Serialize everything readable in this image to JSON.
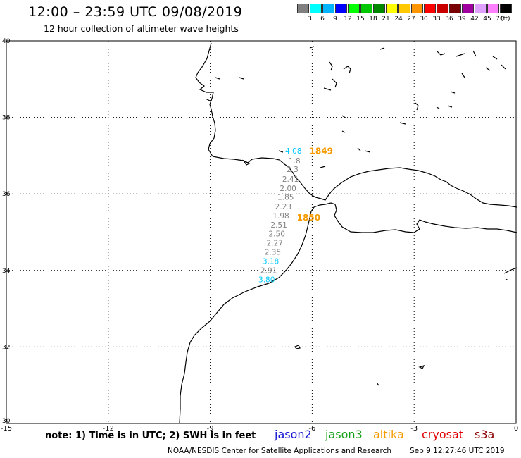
{
  "header": {
    "title": "12:00 – 23:59 UTC 09/08/2019",
    "subtitle": "12 hour collection of altimeter wave heights"
  },
  "color_scale": {
    "unit": "(ft)",
    "labels": [
      "3",
      "6",
      "9",
      "12",
      "15",
      "18",
      "21",
      "24",
      "27",
      "30",
      "33",
      "36",
      "39",
      "42",
      "45",
      "70"
    ],
    "colors": [
      "#808080",
      "#00ffff",
      "#00b4ff",
      "#0000ff",
      "#00ff00",
      "#00c800",
      "#008800",
      "#ffff00",
      "#ffc800",
      "#ff9600",
      "#ff0000",
      "#c80000",
      "#780000",
      "#a000a0",
      "#e0a0ff",
      "#ff80ff",
      "#000000"
    ]
  },
  "map": {
    "lat_labels": [
      "40",
      "38",
      "36",
      "34",
      "32",
      "30"
    ],
    "lon_labels": [
      "-15",
      "-12",
      "-9",
      "-6",
      "-3",
      "0"
    ],
    "observations": [
      {
        "text": "4.08",
        "color": "#00c8ff",
        "lon": -6.55,
        "lat": 37.05
      },
      {
        "text": "1.8",
        "color": "#808080",
        "lon": -6.52,
        "lat": 36.8
      },
      {
        "text": "2.3",
        "color": "#808080",
        "lon": -6.58,
        "lat": 36.57
      },
      {
        "text": "2.41",
        "color": "#808080",
        "lon": -6.64,
        "lat": 36.32
      },
      {
        "text": "2.00",
        "color": "#808080",
        "lon": -6.71,
        "lat": 36.08
      },
      {
        "text": "1.85",
        "color": "#808080",
        "lon": -6.78,
        "lat": 35.85
      },
      {
        "text": "2.23",
        "color": "#808080",
        "lon": -6.85,
        "lat": 35.6
      },
      {
        "text": "1.98",
        "color": "#808080",
        "lon": -6.92,
        "lat": 35.36
      },
      {
        "text": "2.51",
        "color": "#808080",
        "lon": -6.98,
        "lat": 35.12
      },
      {
        "text": "2.50",
        "color": "#808080",
        "lon": -7.04,
        "lat": 34.89
      },
      {
        "text": "2.27",
        "color": "#808080",
        "lon": -7.1,
        "lat": 34.65
      },
      {
        "text": "2.35",
        "color": "#808080",
        "lon": -7.16,
        "lat": 34.41
      },
      {
        "text": "3.18",
        "color": "#00c8ff",
        "lon": -7.22,
        "lat": 34.17
      },
      {
        "text": "2.91",
        "color": "#808080",
        "lon": -7.28,
        "lat": 33.93
      },
      {
        "text": "3.80",
        "color": "#00c8ff",
        "lon": -7.34,
        "lat": 33.69
      }
    ],
    "passes": [
      {
        "text": "1849",
        "lon": -6.08,
        "lat": 37.04
      },
      {
        "text": "1850",
        "lon": -6.45,
        "lat": 35.3
      }
    ]
  },
  "footer": {
    "note": "note:  1) Time is in UTC;  2) SWH is in feet",
    "satellites": [
      {
        "name": "jason2",
        "color": "#1414d2"
      },
      {
        "name": "jason3",
        "color": "#14a014"
      },
      {
        "name": "altika",
        "color": "#f59b00"
      },
      {
        "name": "cryosat",
        "color": "#e00000"
      },
      {
        "name": "s3a",
        "color": "#8b0000"
      }
    ],
    "credit": "NOAA/NESDIS Center for Satellite Applications and Research",
    "timestamp": "Sep  9 12:27:46 UTC 2019"
  }
}
